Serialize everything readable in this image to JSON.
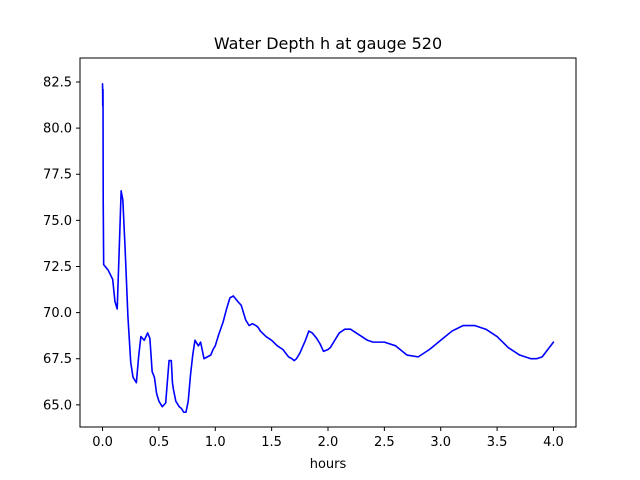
{
  "chart_data": {
    "type": "line",
    "title": "Water Depth h at gauge 520",
    "xlabel": "hours",
    "ylabel": "",
    "xlim": [
      -0.2,
      4.2
    ],
    "ylim": [
      63.8,
      83.8
    ],
    "grid": false,
    "legend": "none",
    "x_ticks": [
      {
        "value": 0.0,
        "label": "0.0"
      },
      {
        "value": 0.5,
        "label": "0.5"
      },
      {
        "value": 1.0,
        "label": "1.0"
      },
      {
        "value": 1.5,
        "label": "1.5"
      },
      {
        "value": 2.0,
        "label": "2.0"
      },
      {
        "value": 2.5,
        "label": "2.5"
      },
      {
        "value": 3.0,
        "label": "3.0"
      },
      {
        "value": 3.5,
        "label": "3.5"
      },
      {
        "value": 4.0,
        "label": "4.0"
      }
    ],
    "y_ticks": [
      {
        "value": 65.0,
        "label": "65.0"
      },
      {
        "value": 67.5,
        "label": "67.5"
      },
      {
        "value": 70.0,
        "label": "70.0"
      },
      {
        "value": 72.5,
        "label": "72.5"
      },
      {
        "value": 75.0,
        "label": "75.0"
      },
      {
        "value": 77.5,
        "label": "77.5"
      },
      {
        "value": 80.0,
        "label": "80.0"
      },
      {
        "value": 82.5,
        "label": "82.5"
      }
    ],
    "series": [
      {
        "color": "#0000ff",
        "x": [
          0.0,
          0.002,
          0.004,
          0.006,
          0.01,
          0.05,
          0.09,
          0.11,
          0.13,
          0.15,
          0.165,
          0.18,
          0.2,
          0.225,
          0.25,
          0.27,
          0.3,
          0.32,
          0.34,
          0.37,
          0.4,
          0.42,
          0.44,
          0.46,
          0.48,
          0.5,
          0.53,
          0.56,
          0.59,
          0.61,
          0.62,
          0.625,
          0.63,
          0.65,
          0.68,
          0.7,
          0.72,
          0.74,
          0.76,
          0.78,
          0.8,
          0.82,
          0.85,
          0.87,
          0.88,
          0.9,
          0.93,
          0.96,
          0.98,
          1.0,
          1.03,
          1.07,
          1.1,
          1.13,
          1.16,
          1.2,
          1.23,
          1.25,
          1.27,
          1.3,
          1.33,
          1.36,
          1.38,
          1.4,
          1.45,
          1.5,
          1.55,
          1.6,
          1.65,
          1.68,
          1.7,
          1.72,
          1.75,
          1.8,
          1.83,
          1.86,
          1.9,
          1.93,
          1.96,
          2.0,
          2.02,
          2.05,
          2.1,
          2.15,
          2.2,
          2.25,
          2.3,
          2.35,
          2.4,
          2.5,
          2.6,
          2.7,
          2.8,
          2.9,
          3.0,
          3.1,
          3.2,
          3.3,
          3.4,
          3.5,
          3.6,
          3.7,
          3.8,
          3.85,
          3.9,
          4.0
        ],
        "y": [
          82.4,
          81.2,
          82.1,
          76.0,
          72.6,
          72.3,
          71.8,
          70.6,
          70.2,
          73.8,
          76.6,
          76.1,
          73.5,
          69.8,
          67.3,
          66.5,
          66.2,
          67.6,
          68.7,
          68.5,
          68.9,
          68.6,
          66.8,
          66.5,
          65.6,
          65.2,
          64.9,
          65.1,
          67.4,
          67.4,
          66.2,
          66.0,
          65.8,
          65.2,
          64.9,
          64.8,
          64.6,
          64.6,
          65.2,
          66.6,
          67.7,
          68.5,
          68.2,
          68.4,
          68.1,
          67.5,
          67.6,
          67.7,
          68.0,
          68.2,
          68.8,
          69.5,
          70.2,
          70.8,
          70.9,
          70.6,
          70.4,
          70.0,
          69.6,
          69.3,
          69.4,
          69.3,
          69.2,
          69.0,
          68.7,
          68.5,
          68.2,
          68.0,
          67.6,
          67.5,
          67.4,
          67.5,
          67.8,
          68.5,
          69.0,
          68.9,
          68.6,
          68.3,
          67.9,
          68.0,
          68.1,
          68.4,
          68.9,
          69.1,
          69.1,
          68.9,
          68.7,
          68.5,
          68.4,
          68.4,
          68.2,
          67.7,
          67.6,
          68.0,
          68.5,
          69.0,
          69.3,
          69.3,
          69.1,
          68.7,
          68.1,
          67.7,
          67.5,
          67.5,
          67.6,
          68.4
        ]
      }
    ]
  }
}
